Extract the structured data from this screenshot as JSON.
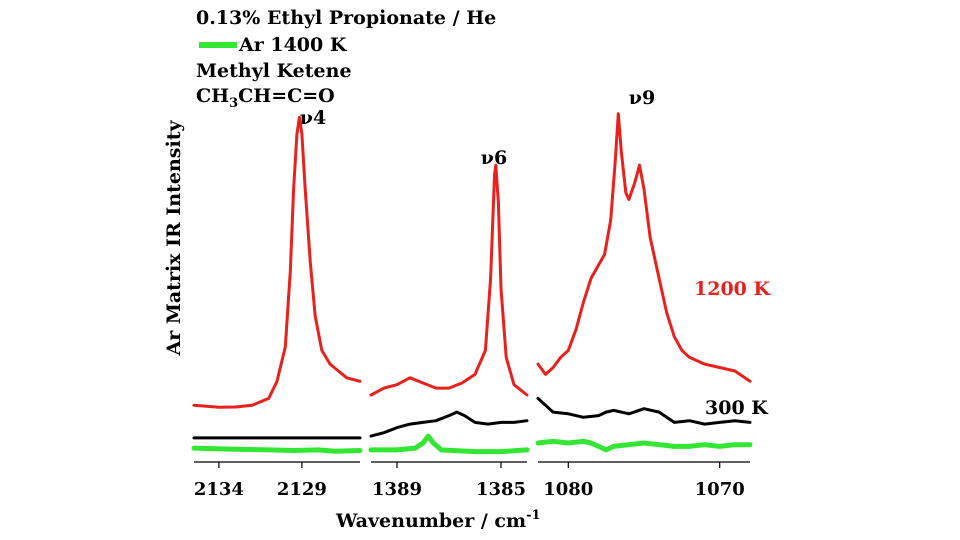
{
  "chart_data": {
    "type": "line",
    "title_lines": [
      "0.13% Ethyl Propionate / He",
      "Ar 1400 K",
      "Methyl Ketene",
      "CH3CH=C=O"
    ],
    "ylabel": "Ar Matrix IR Intensity",
    "xlabel": "Wavenumber / cm-1",
    "ylim": [
      0,
      1
    ],
    "panels": [
      {
        "xlim": [
          2135.5,
          2125.5
        ],
        "ticks": [
          2134,
          2129
        ],
        "peak_label": "ν4",
        "series": [
          {
            "name": "1200 K",
            "color": "#e8211d",
            "points": [
              [
                2135.5,
                0.11
              ],
              [
                2134,
                0.104
              ],
              [
                2133,
                0.105
              ],
              [
                2132,
                0.11
              ],
              [
                2131,
                0.13
              ],
              [
                2130.5,
                0.18
              ],
              [
                2130,
                0.28
              ],
              [
                2129.7,
                0.5
              ],
              [
                2129.5,
                0.74
              ],
              [
                2129.3,
                0.9
              ],
              [
                2129.15,
                0.95
              ],
              [
                2129,
                0.9
              ],
              [
                2128.8,
                0.74
              ],
              [
                2128.5,
                0.53
              ],
              [
                2128.2,
                0.37
              ],
              [
                2127.8,
                0.27
              ],
              [
                2127.3,
                0.23
              ],
              [
                2126.8,
                0.21
              ],
              [
                2126.3,
                0.19
              ],
              [
                2125.5,
                0.18
              ]
            ]
          },
          {
            "name": "300 K",
            "color": "#000000",
            "points": [
              [
                2135.5,
                0.015
              ],
              [
                2125.5,
                0.015
              ]
            ]
          },
          {
            "name": "Ar 1400 K",
            "color": "#33e633",
            "points": [
              [
                2135.5,
                -0.015
              ],
              [
                2133,
                -0.018
              ],
              [
                2131,
                -0.02
              ],
              [
                2129.5,
                -0.022
              ],
              [
                2128,
                -0.02
              ],
              [
                2127,
                -0.024
              ],
              [
                2125.5,
                -0.022
              ]
            ]
          }
        ]
      },
      {
        "xlim": [
          1390,
          1384
        ],
        "ticks": [
          1389,
          1385
        ],
        "peak_label": "ν6",
        "series": [
          {
            "name": "1200 K",
            "color": "#e8211d",
            "points": [
              [
                1390,
                0.14
              ],
              [
                1389.5,
                0.16
              ],
              [
                1389,
                0.17
              ],
              [
                1388.5,
                0.19
              ],
              [
                1388,
                0.175
              ],
              [
                1387.5,
                0.16
              ],
              [
                1387,
                0.16
              ],
              [
                1386.5,
                0.175
              ],
              [
                1386,
                0.2
              ],
              [
                1385.6,
                0.27
              ],
              [
                1385.4,
                0.48
              ],
              [
                1385.25,
                0.78
              ],
              [
                1385.2,
                0.81
              ],
              [
                1385.1,
                0.7
              ],
              [
                1385,
                0.45
              ],
              [
                1384.8,
                0.25
              ],
              [
                1384.5,
                0.17
              ],
              [
                1384,
                0.14
              ]
            ]
          },
          {
            "name": "300 K",
            "color": "#000000",
            "points": [
              [
                1390,
                0.02
              ],
              [
                1389.5,
                0.03
              ],
              [
                1389,
                0.045
              ],
              [
                1388.5,
                0.055
              ],
              [
                1388,
                0.06
              ],
              [
                1387.5,
                0.065
              ],
              [
                1387,
                0.08
              ],
              [
                1386.7,
                0.09
              ],
              [
                1386.4,
                0.08
              ],
              [
                1386,
                0.06
              ],
              [
                1385.5,
                0.055
              ],
              [
                1385,
                0.06
              ],
              [
                1384.5,
                0.06
              ],
              [
                1384,
                0.065
              ]
            ]
          },
          {
            "name": "Ar 1400 K",
            "color": "#33e633",
            "points": [
              [
                1390,
                -0.02
              ],
              [
                1389,
                -0.02
              ],
              [
                1388.3,
                -0.015
              ],
              [
                1388.0,
                0.0
              ],
              [
                1387.8,
                0.02
              ],
              [
                1387.6,
                0.0
              ],
              [
                1387.3,
                -0.02
              ],
              [
                1386,
                -0.025
              ],
              [
                1385,
                -0.025
              ],
              [
                1384,
                -0.02
              ]
            ]
          }
        ]
      },
      {
        "xlim": [
          1082,
          1068
        ],
        "ticks": [
          1080,
          1070
        ],
        "peak_label": "ν9",
        "series": [
          {
            "name": "1200 K",
            "color": "#e8211d",
            "points": [
              [
                1082,
                0.23
              ],
              [
                1081.5,
                0.2
              ],
              [
                1081,
                0.22
              ],
              [
                1080.5,
                0.25
              ],
              [
                1080,
                0.27
              ],
              [
                1079.5,
                0.33
              ],
              [
                1079,
                0.41
              ],
              [
                1078.5,
                0.48
              ],
              [
                1077.6,
                0.55
              ],
              [
                1077.2,
                0.65
              ],
              [
                1076.9,
                0.82
              ],
              [
                1076.7,
                0.96
              ],
              [
                1076.5,
                0.85
              ],
              [
                1076.2,
                0.73
              ],
              [
                1076,
                0.71
              ],
              [
                1075.6,
                0.76
              ],
              [
                1075.3,
                0.81
              ],
              [
                1075,
                0.74
              ],
              [
                1074.6,
                0.6
              ],
              [
                1074,
                0.48
              ],
              [
                1073.5,
                0.38
              ],
              [
                1073,
                0.31
              ],
              [
                1072.5,
                0.27
              ],
              [
                1072,
                0.25
              ],
              [
                1071,
                0.23
              ],
              [
                1070,
                0.22
              ],
              [
                1069,
                0.21
              ],
              [
                1068,
                0.18
              ]
            ]
          },
          {
            "name": "300 K",
            "color": "#000000",
            "points": [
              [
                1082,
                0.13
              ],
              [
                1081.5,
                0.11
              ],
              [
                1081,
                0.09
              ],
              [
                1080,
                0.085
              ],
              [
                1079,
                0.075
              ],
              [
                1078,
                0.08
              ],
              [
                1077.5,
                0.09
              ],
              [
                1077,
                0.095
              ],
              [
                1076,
                0.085
              ],
              [
                1075,
                0.1
              ],
              [
                1074,
                0.09
              ],
              [
                1073.5,
                0.075
              ],
              [
                1073,
                0.06
              ],
              [
                1072,
                0.065
              ],
              [
                1071,
                0.055
              ],
              [
                1070,
                0.06
              ],
              [
                1069,
                0.065
              ],
              [
                1068,
                0.06
              ]
            ]
          },
          {
            "name": "Ar 1400 K",
            "color": "#33e633",
            "points": [
              [
                1082,
                0.0
              ],
              [
                1081,
                0.005
              ],
              [
                1080,
                0.0
              ],
              [
                1079,
                0.005
              ],
              [
                1078.5,
                0.0
              ],
              [
                1078,
                -0.01
              ],
              [
                1077.5,
                -0.02
              ],
              [
                1077,
                -0.01
              ],
              [
                1076,
                -0.005
              ],
              [
                1075,
                0.0
              ],
              [
                1074,
                -0.005
              ],
              [
                1073,
                -0.01
              ],
              [
                1072,
                -0.01
              ],
              [
                1071,
                -0.005
              ],
              [
                1070,
                -0.01
              ],
              [
                1069,
                -0.005
              ],
              [
                1068,
                -0.005
              ]
            ]
          }
        ]
      }
    ],
    "annotations": [
      "1200 K",
      "300 K"
    ]
  }
}
